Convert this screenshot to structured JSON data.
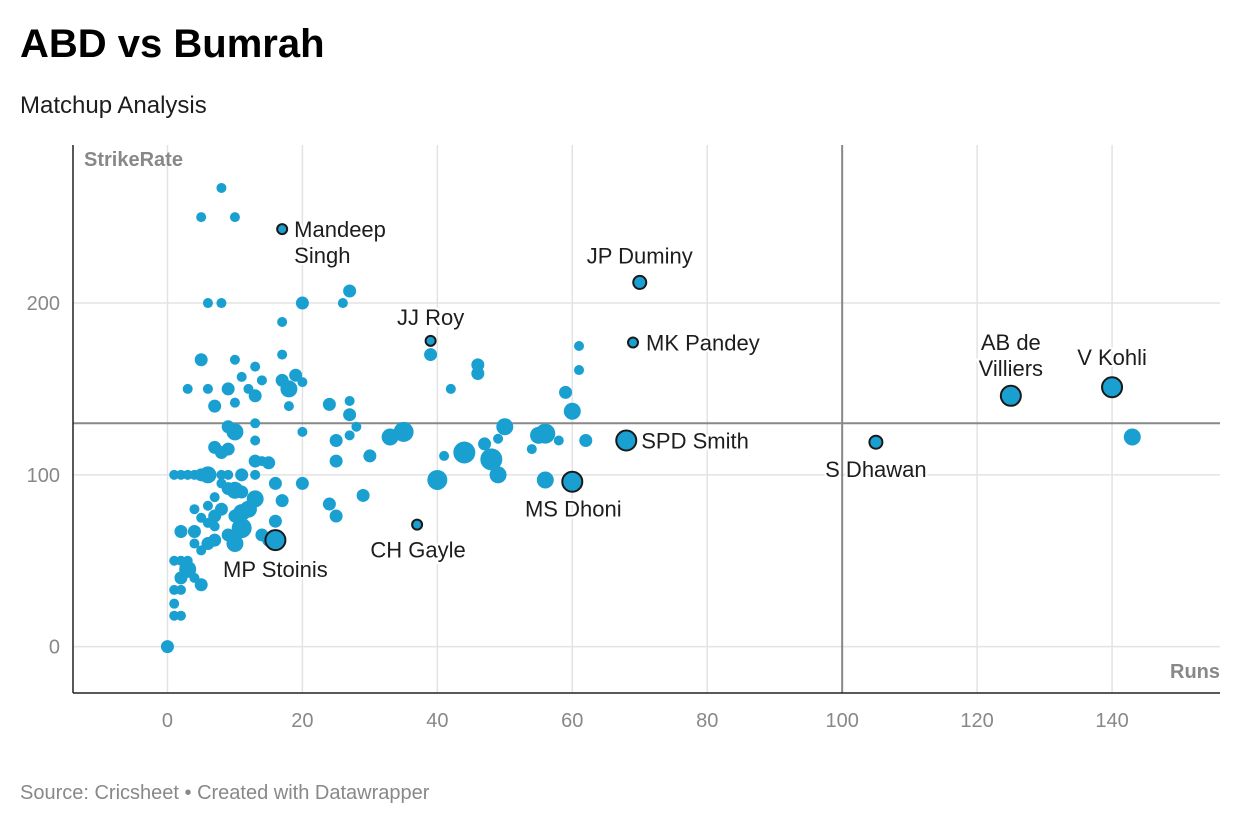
{
  "header": {
    "title": "ABD vs Bumrah",
    "subtitle": "Matchup Analysis"
  },
  "footer": {
    "text": "Source: Cricsheet • Created with Datawrapper"
  },
  "colors": {
    "dot": "#1a9fd1",
    "outline": "#1a1a1a",
    "grid": "#e3e3e3",
    "refline": "#888888",
    "axis": "#222222",
    "axis_label": "#888888"
  },
  "chart_data": {
    "type": "scatter",
    "xlabel": "Runs",
    "ylabel": "StrikeRate",
    "xlim": [
      -14,
      156
    ],
    "ylim": [
      -27,
      292
    ],
    "x_ticks": [
      0,
      20,
      40,
      60,
      80,
      100,
      120,
      140
    ],
    "y_ticks": [
      0,
      100,
      200
    ],
    "reference_lines": {
      "x": 100,
      "y": 130
    },
    "points": [
      {
        "x": 0,
        "y": 0,
        "s": 2
      },
      {
        "x": 1,
        "y": 18,
        "s": 1
      },
      {
        "x": 1,
        "y": 25,
        "s": 1
      },
      {
        "x": 1,
        "y": 33,
        "s": 1
      },
      {
        "x": 1,
        "y": 50,
        "s": 1
      },
      {
        "x": 2,
        "y": 18,
        "s": 1
      },
      {
        "x": 2,
        "y": 33,
        "s": 1
      },
      {
        "x": 2,
        "y": 40,
        "s": 2
      },
      {
        "x": 2,
        "y": 50,
        "s": 1
      },
      {
        "x": 3,
        "y": 45,
        "s": 3
      },
      {
        "x": 3,
        "y": 50,
        "s": 1
      },
      {
        "x": 4,
        "y": 40,
        "s": 1
      },
      {
        "x": 5,
        "y": 36,
        "s": 2
      },
      {
        "x": 5,
        "y": 56,
        "s": 1
      },
      {
        "x": 4,
        "y": 60,
        "s": 1
      },
      {
        "x": 2,
        "y": 67,
        "s": 2
      },
      {
        "x": 4,
        "y": 67,
        "s": 2
      },
      {
        "x": 6,
        "y": 60,
        "s": 2
      },
      {
        "x": 6,
        "y": 72,
        "s": 1
      },
      {
        "x": 5,
        "y": 75,
        "s": 1
      },
      {
        "x": 7,
        "y": 62,
        "s": 2
      },
      {
        "x": 7,
        "y": 70,
        "s": 1
      },
      {
        "x": 7,
        "y": 76,
        "s": 2
      },
      {
        "x": 8,
        "y": 80,
        "s": 2
      },
      {
        "x": 9,
        "y": 65,
        "s": 2
      },
      {
        "x": 10,
        "y": 60,
        "s": 3
      },
      {
        "x": 10,
        "y": 76,
        "s": 2
      },
      {
        "x": 11,
        "y": 69,
        "s": 4
      },
      {
        "x": 11,
        "y": 78,
        "s": 3
      },
      {
        "x": 12,
        "y": 80,
        "s": 3
      },
      {
        "x": 13,
        "y": 86,
        "s": 3
      },
      {
        "x": 11,
        "y": 90,
        "s": 2
      },
      {
        "x": 10,
        "y": 91,
        "s": 3
      },
      {
        "x": 9,
        "y": 92,
        "s": 2
      },
      {
        "x": 8,
        "y": 95,
        "s": 1
      },
      {
        "x": 7,
        "y": 87,
        "s": 1
      },
      {
        "x": 6,
        "y": 82,
        "s": 1
      },
      {
        "x": 4,
        "y": 80,
        "s": 1
      },
      {
        "x": 14,
        "y": 65,
        "s": 2
      },
      {
        "x": 15,
        "y": 62,
        "s": 2
      },
      {
        "x": 16,
        "y": 73,
        "s": 2
      },
      {
        "x": 16,
        "y": 95,
        "s": 2
      },
      {
        "x": 17,
        "y": 85,
        "s": 2
      },
      {
        "x": 1,
        "y": 100,
        "s": 1
      },
      {
        "x": 2,
        "y": 100,
        "s": 1
      },
      {
        "x": 3,
        "y": 100,
        "s": 1
      },
      {
        "x": 4,
        "y": 100,
        "s": 1
      },
      {
        "x": 5,
        "y": 100,
        "s": 2
      },
      {
        "x": 6,
        "y": 100,
        "s": 3
      },
      {
        "x": 8,
        "y": 100,
        "s": 1
      },
      {
        "x": 9,
        "y": 100,
        "s": 1
      },
      {
        "x": 11,
        "y": 100,
        "s": 2
      },
      {
        "x": 13,
        "y": 108,
        "s": 2
      },
      {
        "x": 14,
        "y": 108,
        "s": 1
      },
      {
        "x": 15,
        "y": 107,
        "s": 2
      },
      {
        "x": 13,
        "y": 100,
        "s": 1
      },
      {
        "x": 7,
        "y": 116,
        "s": 2
      },
      {
        "x": 8,
        "y": 113,
        "s": 2
      },
      {
        "x": 9,
        "y": 115,
        "s": 2
      },
      {
        "x": 9,
        "y": 128,
        "s": 2
      },
      {
        "x": 10,
        "y": 125,
        "s": 3
      },
      {
        "x": 13,
        "y": 120,
        "s": 1
      },
      {
        "x": 13,
        "y": 130,
        "s": 1
      },
      {
        "x": 7,
        "y": 140,
        "s": 2
      },
      {
        "x": 10,
        "y": 142,
        "s": 1
      },
      {
        "x": 9,
        "y": 150,
        "s": 2
      },
      {
        "x": 6,
        "y": 150,
        "s": 1
      },
      {
        "x": 3,
        "y": 150,
        "s": 1
      },
      {
        "x": 12,
        "y": 150,
        "s": 1
      },
      {
        "x": 13,
        "y": 146,
        "s": 2
      },
      {
        "x": 11,
        "y": 157,
        "s": 1
      },
      {
        "x": 14,
        "y": 155,
        "s": 1
      },
      {
        "x": 13,
        "y": 163,
        "s": 1
      },
      {
        "x": 10,
        "y": 167,
        "s": 1
      },
      {
        "x": 5,
        "y": 167,
        "s": 2
      },
      {
        "x": 17,
        "y": 155,
        "s": 2
      },
      {
        "x": 18,
        "y": 150,
        "s": 3
      },
      {
        "x": 18,
        "y": 140,
        "s": 1
      },
      {
        "x": 19,
        "y": 158,
        "s": 2
      },
      {
        "x": 20,
        "y": 154,
        "s": 1
      },
      {
        "x": 17,
        "y": 170,
        "s": 1
      },
      {
        "x": 17,
        "y": 189,
        "s": 1
      },
      {
        "x": 6,
        "y": 200,
        "s": 1
      },
      {
        "x": 8,
        "y": 200,
        "s": 1
      },
      {
        "x": 20,
        "y": 200,
        "s": 2
      },
      {
        "x": 26,
        "y": 200,
        "s": 1
      },
      {
        "x": 27,
        "y": 207,
        "s": 2
      },
      {
        "x": 5,
        "y": 250,
        "s": 1
      },
      {
        "x": 10,
        "y": 250,
        "s": 1
      },
      {
        "x": 8,
        "y": 267,
        "s": 1
      },
      {
        "x": 20,
        "y": 125,
        "s": 1
      },
      {
        "x": 20,
        "y": 95,
        "s": 2
      },
      {
        "x": 24,
        "y": 83,
        "s": 2
      },
      {
        "x": 25,
        "y": 76,
        "s": 2
      },
      {
        "x": 25,
        "y": 108,
        "s": 2
      },
      {
        "x": 25,
        "y": 120,
        "s": 2
      },
      {
        "x": 27,
        "y": 123,
        "s": 1
      },
      {
        "x": 27,
        "y": 135,
        "s": 2
      },
      {
        "x": 27,
        "y": 143,
        "s": 1
      },
      {
        "x": 28,
        "y": 128,
        "s": 1
      },
      {
        "x": 24,
        "y": 141,
        "s": 2
      },
      {
        "x": 29,
        "y": 88,
        "s": 2
      },
      {
        "x": 30,
        "y": 111,
        "s": 2
      },
      {
        "x": 33,
        "y": 122,
        "s": 3
      },
      {
        "x": 35,
        "y": 125,
        "s": 4
      },
      {
        "x": 39,
        "y": 170,
        "s": 2
      },
      {
        "x": 40,
        "y": 97,
        "s": 4
      },
      {
        "x": 41,
        "y": 111,
        "s": 1
      },
      {
        "x": 42,
        "y": 150,
        "s": 1
      },
      {
        "x": 44,
        "y": 113,
        "s": 5
      },
      {
        "x": 46,
        "y": 159,
        "s": 2
      },
      {
        "x": 46,
        "y": 164,
        "s": 2
      },
      {
        "x": 47,
        "y": 118,
        "s": 2
      },
      {
        "x": 48,
        "y": 109,
        "s": 5
      },
      {
        "x": 49,
        "y": 100,
        "s": 3
      },
      {
        "x": 49,
        "y": 121,
        "s": 1
      },
      {
        "x": 50,
        "y": 128,
        "s": 3
      },
      {
        "x": 54,
        "y": 115,
        "s": 1
      },
      {
        "x": 55,
        "y": 123,
        "s": 3
      },
      {
        "x": 56,
        "y": 124,
        "s": 4
      },
      {
        "x": 56,
        "y": 97,
        "s": 3
      },
      {
        "x": 58,
        "y": 120,
        "s": 1
      },
      {
        "x": 59,
        "y": 148,
        "s": 2
      },
      {
        "x": 60,
        "y": 137,
        "s": 3
      },
      {
        "x": 61,
        "y": 161,
        "s": 1
      },
      {
        "x": 61,
        "y": 175,
        "s": 1
      },
      {
        "x": 62,
        "y": 120,
        "s": 2
      },
      {
        "x": 143,
        "y": 122,
        "s": 3
      }
    ],
    "highlighted": [
      {
        "name": "Mandeep Singh",
        "label_lines": [
          "Mandeep",
          "Singh"
        ],
        "x": 17,
        "y": 243,
        "s": 1
      },
      {
        "name": "JP Duminy",
        "label_lines": [
          "JP Duminy"
        ],
        "x": 70,
        "y": 212,
        "s": 2
      },
      {
        "name": "JJ Roy",
        "label_lines": [
          "JJ Roy"
        ],
        "x": 39,
        "y": 178,
        "s": 1
      },
      {
        "name": "MK Pandey",
        "label_lines": [
          "MK Pandey"
        ],
        "x": 69,
        "y": 177,
        "s": 1
      },
      {
        "name": "AB de Villiers",
        "label_lines": [
          "AB de",
          "Villiers"
        ],
        "x": 125,
        "y": 146,
        "s": 4
      },
      {
        "name": "V Kohli",
        "label_lines": [
          "V Kohli"
        ],
        "x": 140,
        "y": 151,
        "s": 4
      },
      {
        "name": "SPD Smith",
        "label_lines": [
          "SPD Smith"
        ],
        "x": 68,
        "y": 120,
        "s": 4
      },
      {
        "name": "S Dhawan",
        "label_lines": [
          "S Dhawan"
        ],
        "x": 105,
        "y": 119,
        "s": 2
      },
      {
        "name": "MS Dhoni",
        "label_lines": [
          "MS Dhoni"
        ],
        "x": 60,
        "y": 96,
        "s": 4
      },
      {
        "name": "CH Gayle",
        "label_lines": [
          "CH Gayle"
        ],
        "x": 37,
        "y": 71,
        "s": 1
      },
      {
        "name": "MP Stoinis",
        "label_lines": [
          "MP Stoinis"
        ],
        "x": 16,
        "y": 62,
        "s": 4
      }
    ]
  }
}
